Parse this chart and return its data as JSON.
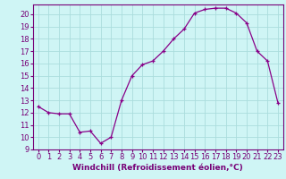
{
  "x": [
    0,
    1,
    2,
    3,
    4,
    5,
    6,
    7,
    8,
    9,
    10,
    11,
    12,
    13,
    14,
    15,
    16,
    17,
    18,
    19,
    20,
    21,
    22,
    23
  ],
  "y": [
    12.5,
    12.0,
    11.9,
    11.9,
    10.4,
    10.5,
    9.5,
    10.0,
    13.0,
    15.0,
    15.9,
    16.2,
    17.0,
    18.0,
    18.8,
    20.1,
    20.4,
    20.5,
    20.5,
    20.1,
    19.3,
    17.0,
    16.2,
    12.8
  ],
  "xlabel": "Windchill (Refroidissement éolien,°C)",
  "xlim_min": -0.5,
  "xlim_max": 23.5,
  "ylim_min": 9,
  "ylim_max": 20.8,
  "yticks": [
    9,
    10,
    11,
    12,
    13,
    14,
    15,
    16,
    17,
    18,
    19,
    20
  ],
  "xticks": [
    0,
    1,
    2,
    3,
    4,
    5,
    6,
    7,
    8,
    9,
    10,
    11,
    12,
    13,
    14,
    15,
    16,
    17,
    18,
    19,
    20,
    21,
    22,
    23
  ],
  "line_color": "#880088",
  "marker": "+",
  "bg_color": "#cff5f5",
  "grid_color": "#aadddd",
  "axis_color": "#770077",
  "label_fontsize": 6.5,
  "tick_fontsize": 6.0,
  "markersize": 3.5,
  "linewidth": 0.9
}
